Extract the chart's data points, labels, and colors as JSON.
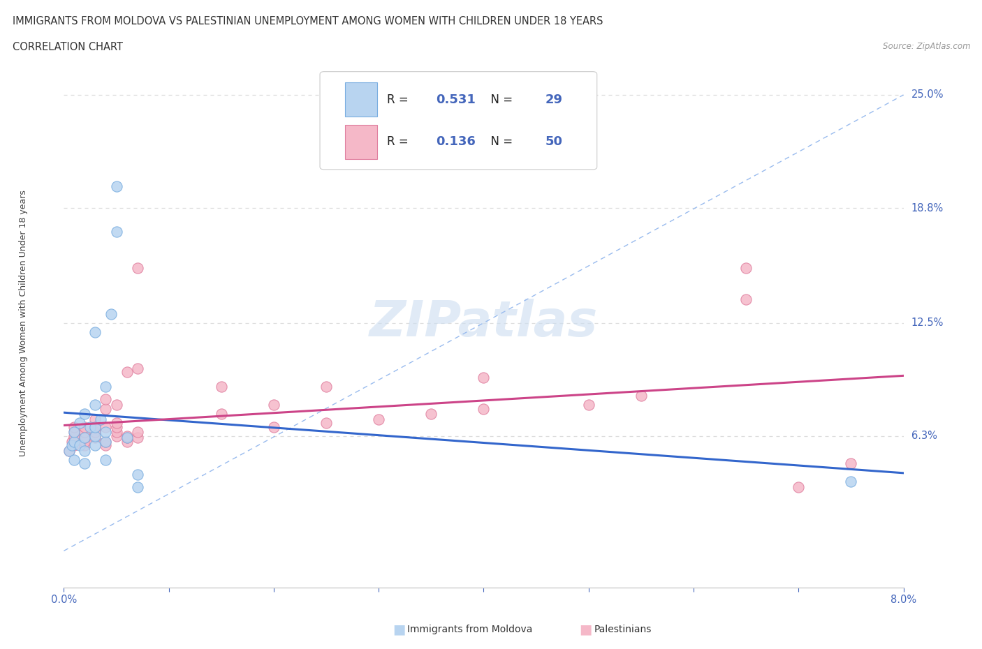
{
  "title_line1": "IMMIGRANTS FROM MOLDOVA VS PALESTINIAN UNEMPLOYMENT AMONG WOMEN WITH CHILDREN UNDER 18 YEARS",
  "title_line2": "CORRELATION CHART",
  "source": "Source: ZipAtlas.com",
  "ylabel": "Unemployment Among Women with Children Under 18 years",
  "xlim": [
    0.0,
    0.08
  ],
  "ylim": [
    -0.02,
    0.27
  ],
  "xticks": [
    0.0,
    0.01,
    0.02,
    0.03,
    0.04,
    0.05,
    0.06,
    0.07,
    0.08
  ],
  "xticklabels": [
    "0.0%",
    "",
    "",
    "",
    "",
    "",
    "",
    "",
    "8.0%"
  ],
  "ytick_positions": [
    0.063,
    0.125,
    0.188,
    0.25
  ],
  "ytick_labels": [
    "6.3%",
    "12.5%",
    "18.8%",
    "25.0%"
  ],
  "r_moldova": 0.531,
  "n_moldova": 29,
  "r_palestinian": 0.136,
  "n_palestinian": 50,
  "color_moldova_fill": "#b8d4f0",
  "color_moldova_edge": "#7aaee0",
  "color_palestinian_fill": "#f5b8c8",
  "color_palestinian_edge": "#e080a0",
  "color_trend_moldova": "#3366cc",
  "color_trend_palestinian": "#cc4488",
  "color_diagonal": "#99bbee",
  "color_gridline": "#dddddd",
  "color_axis_blue": "#4466bb",
  "color_title": "#333333",
  "watermark_color": "#ccddf0",
  "moldova_x": [
    0.0005,
    0.0008,
    0.001,
    0.001,
    0.001,
    0.0015,
    0.0015,
    0.002,
    0.002,
    0.002,
    0.002,
    0.0025,
    0.003,
    0.003,
    0.003,
    0.003,
    0.003,
    0.0035,
    0.004,
    0.004,
    0.004,
    0.004,
    0.0045,
    0.005,
    0.005,
    0.006,
    0.007,
    0.007,
    0.075
  ],
  "moldova_y": [
    0.055,
    0.058,
    0.05,
    0.06,
    0.065,
    0.058,
    0.07,
    0.048,
    0.055,
    0.062,
    0.075,
    0.068,
    0.058,
    0.063,
    0.068,
    0.08,
    0.12,
    0.072,
    0.05,
    0.06,
    0.065,
    0.09,
    0.13,
    0.175,
    0.2,
    0.062,
    0.035,
    0.042,
    0.038
  ],
  "palestinian_x": [
    0.0005,
    0.0008,
    0.001,
    0.001,
    0.001,
    0.001,
    0.001,
    0.002,
    0.002,
    0.002,
    0.002,
    0.002,
    0.003,
    0.003,
    0.003,
    0.003,
    0.004,
    0.004,
    0.004,
    0.004,
    0.004,
    0.005,
    0.005,
    0.005,
    0.005,
    0.005,
    0.006,
    0.006,
    0.006,
    0.006,
    0.007,
    0.007,
    0.007,
    0.007,
    0.015,
    0.015,
    0.02,
    0.02,
    0.025,
    0.025,
    0.03,
    0.035,
    0.04,
    0.04,
    0.05,
    0.055,
    0.065,
    0.065,
    0.07,
    0.075
  ],
  "palestinian_y": [
    0.055,
    0.06,
    0.058,
    0.062,
    0.063,
    0.065,
    0.068,
    0.058,
    0.06,
    0.062,
    0.065,
    0.068,
    0.062,
    0.065,
    0.068,
    0.072,
    0.058,
    0.06,
    0.068,
    0.078,
    0.083,
    0.063,
    0.065,
    0.068,
    0.07,
    0.08,
    0.06,
    0.062,
    0.063,
    0.098,
    0.062,
    0.065,
    0.1,
    0.155,
    0.075,
    0.09,
    0.068,
    0.08,
    0.07,
    0.09,
    0.072,
    0.075,
    0.078,
    0.095,
    0.08,
    0.085,
    0.138,
    0.155,
    0.035,
    0.048
  ]
}
